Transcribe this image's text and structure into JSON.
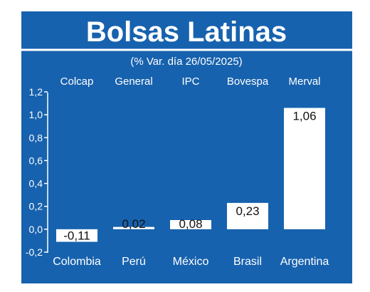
{
  "chart_data": {
    "type": "bar",
    "title": "Bolsas Latinas",
    "subtitle": "(% Var. día 26/05/2025)",
    "index_labels": [
      "Colcap",
      "General",
      "IPC",
      "Bovespa",
      "Merval"
    ],
    "categories": [
      "Colombia",
      "Perú",
      "México",
      "Brasil",
      "Argentina"
    ],
    "values": [
      -0.11,
      0.02,
      0.08,
      0.23,
      1.06
    ],
    "value_labels": [
      "-0,11",
      "0,02",
      "0,08",
      "0,23",
      "1,06"
    ],
    "y_ticks": [
      -0.2,
      0.0,
      0.2,
      0.4,
      0.6,
      0.8,
      1.0,
      1.2
    ],
    "y_tick_labels": [
      "-0,2",
      "0,0",
      "0,2",
      "0,4",
      "0,6",
      "0,8",
      "1,0",
      "1,2"
    ],
    "ylim": [
      -0.2,
      1.2
    ],
    "grid": false,
    "colors": {
      "background": "#1762ae",
      "bar": "#ffffff",
      "text": "#ffffff",
      "label_text": "#111111",
      "border": "#ffffff"
    }
  }
}
